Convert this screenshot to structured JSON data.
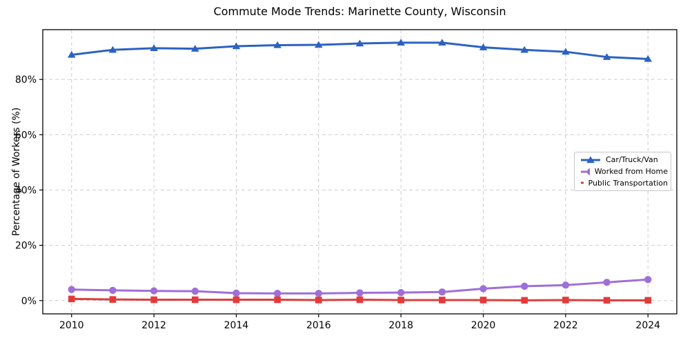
{
  "chart_data": {
    "type": "line",
    "title": "Commute Mode Trends: Marinette County, Wisconsin",
    "xlabel": "",
    "ylabel": "Percentage of Workers (%)",
    "x": [
      2010,
      2011,
      2012,
      2013,
      2014,
      2015,
      2016,
      2017,
      2018,
      2019,
      2020,
      2021,
      2022,
      2023,
      2024
    ],
    "series": [
      {
        "name": "Car/Truck/Van",
        "color": "#2b62c2",
        "marker": "triangle",
        "values": [
          88.9,
          90.7,
          91.3,
          91.1,
          92.0,
          92.4,
          92.5,
          93.0,
          93.3,
          93.3,
          91.6,
          90.7,
          90.0,
          88.1,
          87.4
        ]
      },
      {
        "name": "Worked from Home",
        "color": "#9e6fd8",
        "marker": "circle",
        "values": [
          4.0,
          3.7,
          3.5,
          3.4,
          2.7,
          2.6,
          2.6,
          2.8,
          2.9,
          3.1,
          4.3,
          5.2,
          5.6,
          6.6,
          7.6
        ]
      },
      {
        "name": "Public Transportation",
        "color": "#e03c3b",
        "marker": "square",
        "values": [
          0.6,
          0.4,
          0.3,
          0.3,
          0.3,
          0.3,
          0.2,
          0.3,
          0.2,
          0.2,
          0.2,
          0.1,
          0.2,
          0.1,
          0.1
        ]
      }
    ],
    "xticks": [
      2010,
      2012,
      2014,
      2016,
      2018,
      2020,
      2022,
      2024
    ],
    "xtick_labels": [
      "2010",
      "2012",
      "2014",
      "2016",
      "2018",
      "2020",
      "2022",
      "2024"
    ],
    "yticks": [
      0,
      20,
      40,
      60,
      80
    ],
    "ytick_labels": [
      "0%",
      "20%",
      "40%",
      "60%",
      "80%"
    ],
    "xlim": [
      2009.3,
      2024.7
    ],
    "ylim": [
      -4.8,
      98
    ],
    "grid": "dashed, both axes, at labeled ticks only",
    "legend_position": "center-right inside plot",
    "frame_color": "#000000",
    "grid_color": "#cccccc",
    "tick_label_color": "#000000"
  }
}
